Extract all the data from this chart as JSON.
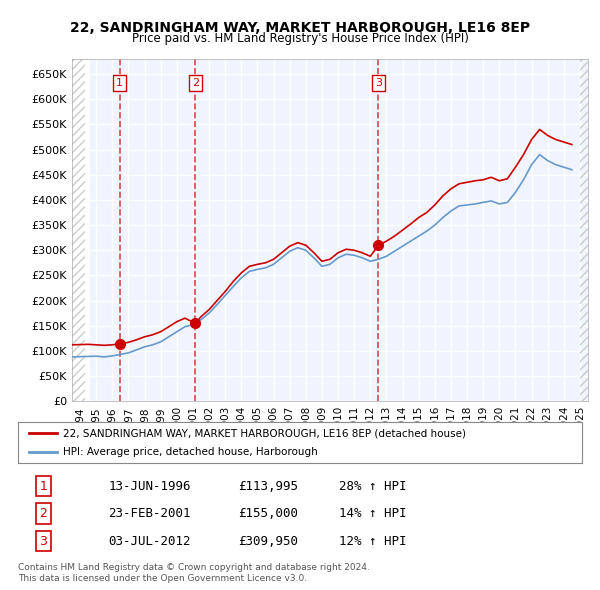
{
  "title": "22, SANDRINGHAM WAY, MARKET HARBOROUGH, LE16 8EP",
  "subtitle": "Price paid vs. HM Land Registry's House Price Index (HPI)",
  "ylabel_ticks": [
    "£0",
    "£50K",
    "£100K",
    "£150K",
    "£200K",
    "£250K",
    "£300K",
    "£350K",
    "£400K",
    "£450K",
    "£500K",
    "£550K",
    "£600K",
    "£650K"
  ],
  "ylim": [
    0,
    680000
  ],
  "xlim_start": 1993.5,
  "xlim_end": 2025.5,
  "bg_color": "#f0f4ff",
  "grid_color": "#ffffff",
  "hpi_color": "#6699cc",
  "price_color": "#cc0000",
  "sale_dates": [
    1996.45,
    2001.15,
    2012.5
  ],
  "sale_prices": [
    113995,
    155000,
    309950
  ],
  "sale_labels": [
    "1",
    "2",
    "3"
  ],
  "legend_line1": "22, SANDRINGHAM WAY, MARKET HARBOROUGH, LE16 8EP (detached house)",
  "legend_line2": "HPI: Average price, detached house, Harborough",
  "table_rows": [
    [
      "1",
      "13-JUN-1996",
      "£113,995",
      "28% ↑ HPI"
    ],
    [
      "2",
      "23-FEB-2001",
      "£155,000",
      "14% ↑ HPI"
    ],
    [
      "3",
      "03-JUL-2012",
      "£309,950",
      "12% ↑ HPI"
    ]
  ],
  "footnote": "Contains HM Land Registry data © Crown copyright and database right 2024.\nThis data is licensed under the Open Government Licence v3.0.",
  "hpi_data_x": [
    1993.5,
    1994.0,
    1994.5,
    1995.0,
    1995.5,
    1996.0,
    1996.5,
    1997.0,
    1997.5,
    1998.0,
    1998.5,
    1999.0,
    1999.5,
    2000.0,
    2000.5,
    2001.0,
    2001.5,
    2002.0,
    2002.5,
    2003.0,
    2003.5,
    2004.0,
    2004.5,
    2005.0,
    2005.5,
    2006.0,
    2006.5,
    2007.0,
    2007.5,
    2008.0,
    2008.5,
    2009.0,
    2009.5,
    2010.0,
    2010.5,
    2011.0,
    2011.5,
    2012.0,
    2012.5,
    2013.0,
    2013.5,
    2014.0,
    2014.5,
    2015.0,
    2015.5,
    2016.0,
    2016.5,
    2017.0,
    2017.5,
    2018.0,
    2018.5,
    2019.0,
    2019.5,
    2020.0,
    2020.5,
    2021.0,
    2021.5,
    2022.0,
    2022.5,
    2023.0,
    2023.5,
    2024.0,
    2024.5
  ],
  "hpi_data_y": [
    88000,
    88500,
    89000,
    89500,
    88000,
    90000,
    93000,
    96000,
    102000,
    108000,
    112000,
    118000,
    128000,
    138000,
    148000,
    152000,
    162000,
    175000,
    192000,
    210000,
    228000,
    245000,
    258000,
    262000,
    265000,
    272000,
    285000,
    298000,
    305000,
    300000,
    285000,
    268000,
    272000,
    285000,
    292000,
    290000,
    285000,
    278000,
    282000,
    288000,
    298000,
    308000,
    318000,
    328000,
    338000,
    350000,
    365000,
    378000,
    388000,
    390000,
    392000,
    395000,
    398000,
    392000,
    395000,
    415000,
    440000,
    470000,
    490000,
    478000,
    470000,
    465000,
    460000
  ],
  "price_data_x": [
    1993.5,
    1994.0,
    1994.5,
    1995.0,
    1995.5,
    1996.0,
    1996.45,
    1997.0,
    1997.5,
    1998.0,
    1998.5,
    1999.0,
    1999.5,
    2000.0,
    2000.5,
    2001.15,
    2001.5,
    2002.0,
    2002.5,
    2003.0,
    2003.5,
    2004.0,
    2004.5,
    2005.0,
    2005.5,
    2006.0,
    2006.5,
    2007.0,
    2007.5,
    2008.0,
    2008.5,
    2009.0,
    2009.5,
    2010.0,
    2010.5,
    2011.0,
    2011.5,
    2012.0,
    2012.5,
    2013.0,
    2013.5,
    2014.0,
    2014.5,
    2015.0,
    2015.5,
    2016.0,
    2016.5,
    2017.0,
    2017.5,
    2018.0,
    2018.5,
    2019.0,
    2019.5,
    2020.0,
    2020.5,
    2021.0,
    2021.5,
    2022.0,
    2022.5,
    2023.0,
    2023.5,
    2024.0,
    2024.5
  ],
  "price_data_y": [
    112000,
    112500,
    113000,
    112000,
    111000,
    112000,
    113995,
    117000,
    122000,
    128000,
    132000,
    138000,
    148000,
    158000,
    165000,
    155000,
    168000,
    182000,
    200000,
    218000,
    238000,
    255000,
    268000,
    272000,
    275000,
    282000,
    295000,
    308000,
    315000,
    310000,
    295000,
    278000,
    282000,
    295000,
    302000,
    300000,
    295000,
    288000,
    309950,
    318000,
    328000,
    340000,
    352000,
    365000,
    375000,
    390000,
    408000,
    422000,
    432000,
    435000,
    438000,
    440000,
    445000,
    438000,
    442000,
    465000,
    490000,
    520000,
    540000,
    528000,
    520000,
    515000,
    510000
  ]
}
